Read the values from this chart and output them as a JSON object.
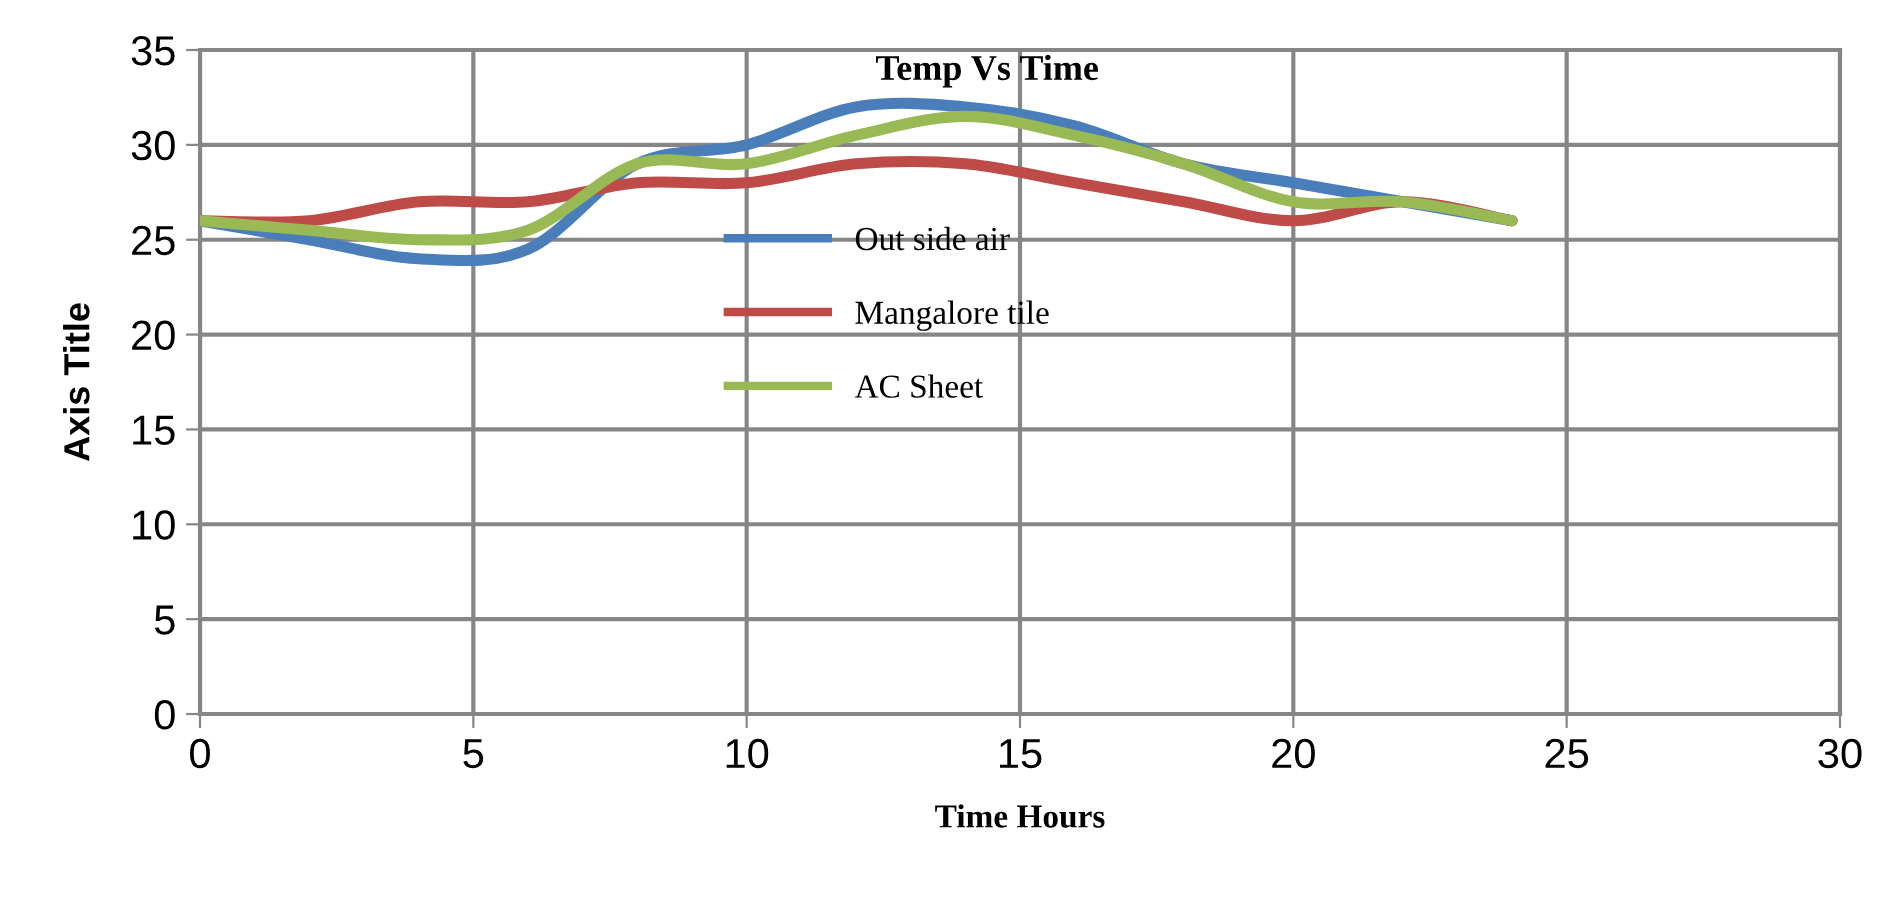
{
  "chart_data": {
    "type": "line",
    "title": "Temp Vs Time",
    "xlabel": "Time Hours",
    "ylabel": "Axis Title",
    "x": [
      0,
      2,
      4,
      6,
      8,
      10,
      12,
      14,
      16,
      18,
      20,
      22,
      24
    ],
    "series": [
      {
        "name": "Out side air",
        "color": "#4a7ebb",
        "values": [
          26,
          25,
          24,
          24.5,
          29,
          30,
          32,
          32,
          31,
          29,
          28,
          27,
          26
        ]
      },
      {
        "name": "Mangalore tile",
        "color": "#be4b48",
        "values": [
          26,
          26,
          27,
          27,
          28,
          28,
          29,
          29,
          28,
          27,
          26,
          27,
          26
        ]
      },
      {
        "name": "AC Sheet",
        "color": "#98b954",
        "values": [
          26,
          25.5,
          25,
          25.5,
          29,
          29,
          30.5,
          31.5,
          30.5,
          29,
          27,
          27,
          26
        ]
      }
    ],
    "xlim": [
      0,
      30
    ],
    "xticks": [
      0,
      5,
      10,
      15,
      20,
      25,
      30
    ],
    "ylim": [
      0,
      35
    ],
    "yticks": [
      0,
      5,
      10,
      15,
      20,
      25,
      30,
      35
    ],
    "grid": true,
    "legend": "center",
    "marker": "none",
    "line_style": "solid"
  }
}
